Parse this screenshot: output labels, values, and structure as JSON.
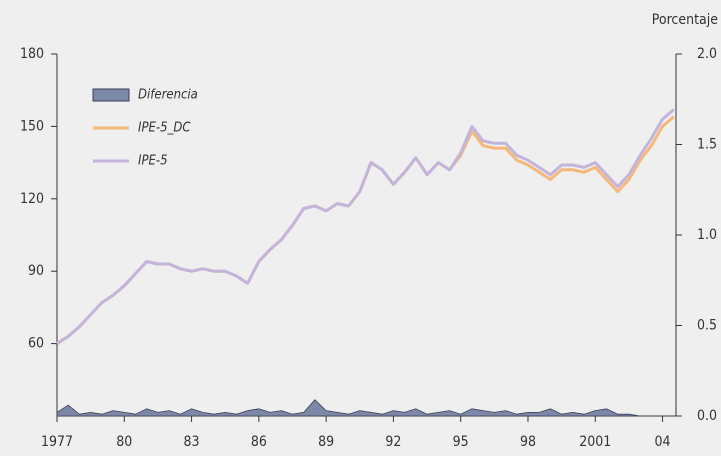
{
  "chart_data": {
    "type": "line",
    "axis_label_y2": "Porcentaje",
    "x": [
      1977,
      1977.5,
      1978,
      1978.5,
      1979,
      1979.5,
      1980,
      1980.5,
      1981,
      1981.5,
      1982,
      1982.5,
      1983,
      1983.5,
      1984,
      1984.5,
      1985,
      1985.5,
      1986,
      1986.5,
      1987,
      1987.5,
      1988,
      1988.5,
      1989,
      1989.5,
      1990,
      1990.5,
      1991,
      1991.5,
      1992,
      1992.5,
      1993,
      1993.5,
      1994,
      1994.5,
      1995,
      1995.5,
      1996,
      1996.5,
      1997,
      1997.5,
      1998,
      1998.5,
      1999,
      1999.5,
      2000,
      2000.5,
      2001,
      2001.5,
      2002,
      2002.5,
      2003,
      2003.5,
      2004,
      2004.5
    ],
    "series": [
      {
        "name": "Diferencia",
        "color": "#7d87a8",
        "kind": "area",
        "axis": "y2",
        "values": [
          0.02,
          0.06,
          0.01,
          0.02,
          0.01,
          0.03,
          0.02,
          0.01,
          0.04,
          0.02,
          0.03,
          0.01,
          0.04,
          0.02,
          0.01,
          0.02,
          0.01,
          0.03,
          0.04,
          0.02,
          0.03,
          0.01,
          0.02,
          0.09,
          0.03,
          0.02,
          0.01,
          0.03,
          0.02,
          0.01,
          0.03,
          0.02,
          0.04,
          0.01,
          0.02,
          0.03,
          0.01,
          0.04,
          0.03,
          0.02,
          0.03,
          0.01,
          0.02,
          0.02,
          0.04,
          0.01,
          0.02,
          0.01,
          0.03,
          0.04,
          0.01,
          0.01,
          0,
          0,
          0,
          0
        ]
      },
      {
        "name": "IPE-5_DC",
        "color": "#f5b77a",
        "kind": "line",
        "values": [
          60,
          63,
          67,
          72,
          77,
          80,
          84,
          89,
          94,
          93,
          93,
          91,
          90,
          91,
          90,
          90,
          88,
          85,
          94,
          99,
          103,
          109,
          116,
          117,
          115,
          118,
          117,
          123,
          135,
          132,
          126,
          131,
          137,
          130,
          135,
          132,
          138,
          148,
          142,
          141,
          141,
          136,
          134,
          131,
          128,
          132,
          132,
          131,
          133,
          128,
          123,
          128,
          136,
          142,
          150,
          154
        ]
      },
      {
        "name": "IPE-5",
        "color": "#c3b4dc",
        "kind": "line",
        "values": [
          60,
          63,
          67,
          72,
          77,
          80,
          84,
          89,
          94,
          93,
          93,
          91,
          90,
          91,
          90,
          90,
          88,
          85,
          94,
          99,
          103,
          109,
          116,
          117,
          115,
          118,
          117,
          123,
          135,
          132,
          126,
          131,
          137,
          130,
          135,
          132,
          139,
          150,
          144,
          143,
          143,
          138,
          136,
          133,
          130,
          134,
          134,
          133,
          135,
          130,
          125,
          130,
          138,
          145,
          153,
          157
        ]
      }
    ],
    "xlim": [
      1977,
      2004.6
    ],
    "xticks": [
      {
        "value": 1977,
        "label": "1977"
      },
      {
        "value": 1980,
        "label": "80"
      },
      {
        "value": 1983,
        "label": "83"
      },
      {
        "value": 1986,
        "label": "86"
      },
      {
        "value": 1989,
        "label": "89"
      },
      {
        "value": 1992,
        "label": "92"
      },
      {
        "value": 1995,
        "label": "95"
      },
      {
        "value": 1998,
        "label": "98"
      },
      {
        "value": 2001,
        "label": "2001"
      },
      {
        "value": 2004,
        "label": "04"
      }
    ],
    "ylim": [
      30,
      180
    ],
    "yticks": [
      60,
      90,
      120,
      150,
      180
    ],
    "y2lim": [
      0,
      2
    ],
    "y2ticks": [
      {
        "value": 0,
        "label": "0.0"
      },
      {
        "value": 0.5,
        "label": "0.5"
      },
      {
        "value": 1,
        "label": "1.0"
      },
      {
        "value": 1.5,
        "label": "1.5"
      },
      {
        "value": 2,
        "label": "2.0"
      }
    ],
    "legend": "top-left"
  }
}
